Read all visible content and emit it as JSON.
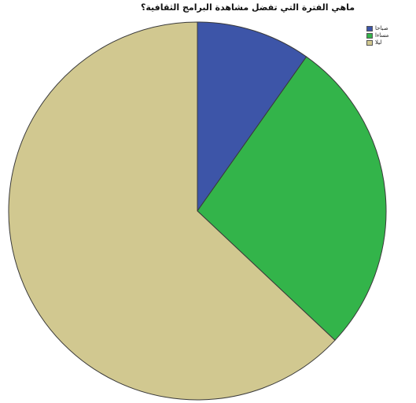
{
  "chart_data": {
    "type": "pie",
    "title": "ماهي الفترة التي تفضل مشاهدة البرامج الثقافية؟",
    "categories": [
      "صباحا",
      "مساءا",
      "ليلا"
    ],
    "values": [
      9.8,
      27.2,
      63.0
    ],
    "colors": [
      "#3d55a8",
      "#33b44a",
      "#d1c890"
    ],
    "start_angle_deg": 0,
    "direction": "clockwise",
    "legend_position": "top-right"
  }
}
